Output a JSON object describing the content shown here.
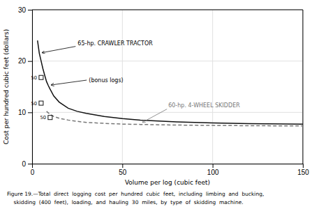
{
  "chart_data": {
    "type": "line",
    "xlabel": "Volume per log (cubic feet)",
    "ylabel": "Cost per hundred cubic feet (dollars)",
    "caption": [
      "Figure 19.—Total  direct  logging  cost  per  hundred  cubic  feet,  including  limbing  and  bucking,",
      "    skidding  (400  feet),  loading,  and  hauling  30  miles,  by  type  of  skidding  machine."
    ],
    "annotations": [
      "(bonus logs)"
    ],
    "xlim": [
      0,
      150
    ],
    "ylim": [
      0,
      30
    ],
    "xticks": [
      0,
      50,
      100,
      150
    ],
    "yticks": [
      0,
      10,
      20,
      30
    ],
    "grid": true,
    "series": [
      {
        "name": "65-hp. CRAWLER TRACTOR",
        "type": "line",
        "color": "#111111",
        "line_style": "solid",
        "x": [
          3,
          4,
          5,
          6,
          7,
          8,
          9,
          10,
          12,
          15,
          20,
          25,
          30,
          40,
          50,
          60,
          70,
          80,
          100,
          120,
          150
        ],
        "values": [
          24.0,
          21.5,
          20.0,
          18.5,
          17.2,
          16.0,
          15.2,
          14.5,
          13.2,
          12.0,
          10.8,
          10.2,
          9.8,
          9.2,
          8.8,
          8.5,
          8.3,
          8.15,
          7.95,
          7.82,
          7.7
        ]
      },
      {
        "name": "60-hp. 4-WHEEL SKIDDER",
        "type": "line",
        "color": "#777777",
        "line_style": "dashed",
        "x": [
          8,
          10,
          12,
          15,
          20,
          25,
          30,
          40,
          50,
          60,
          70,
          80,
          100,
          120,
          150
        ],
        "values": [
          10.2,
          9.6,
          9.2,
          8.85,
          8.5,
          8.25,
          8.05,
          7.85,
          7.72,
          7.65,
          7.58,
          7.53,
          7.45,
          7.4,
          7.35
        ]
      },
      {
        "type": "scatter",
        "marker": "square",
        "color": "#111111",
        "x": [
          5,
          5,
          10
        ],
        "values": [
          16.8,
          11.8,
          9.0
        ],
        "labels": [
          "5O",
          "5O",
          "5O"
        ]
      }
    ]
  }
}
